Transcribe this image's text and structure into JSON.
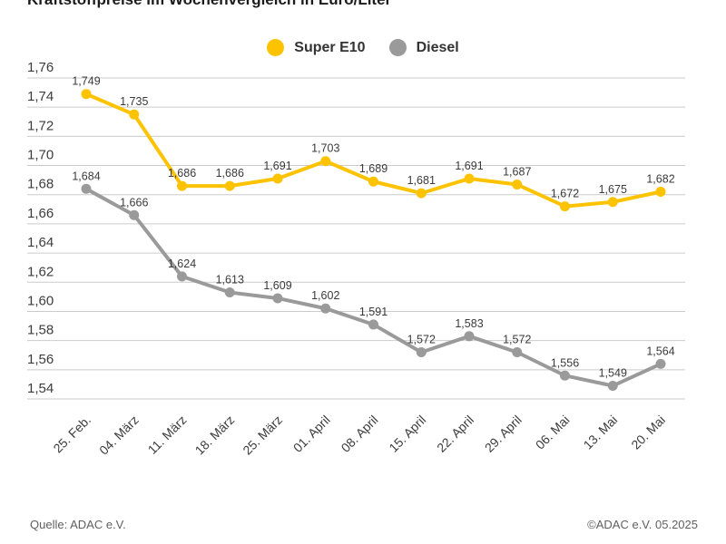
{
  "title": "Kraftstoffpreise im Wochenvergleich in Euro/Liter",
  "legend": {
    "items": [
      {
        "label": "Super E10",
        "color": "#FDC300"
      },
      {
        "label": "Diesel",
        "color": "#9A9A9A"
      }
    ]
  },
  "footer": {
    "source": "Quelle: ADAC e.V.",
    "copyright": "©ADAC e.V. 05.2025"
  },
  "colors": {
    "grid": "#CBCBCB",
    "axis_text": "#3C3C3C",
    "value_label": "#3A3A3A"
  },
  "chart_data": {
    "type": "line",
    "title": "Kraftstoffpreise im Wochenvergleich in Euro/Liter",
    "categories": [
      "25. Feb.",
      "04. März",
      "11. März",
      "18. März",
      "25. März",
      "01. April",
      "08. April",
      "15. April",
      "22. April",
      "29. April",
      "06. Mai",
      "13. Mai",
      "20. Mai"
    ],
    "series": [
      {
        "name": "Super E10",
        "color": "#FDC300",
        "values": [
          1.749,
          1.735,
          1.686,
          1.686,
          1.691,
          1.703,
          1.689,
          1.681,
          1.691,
          1.687,
          1.672,
          1.675,
          1.682
        ]
      },
      {
        "name": "Diesel",
        "color": "#9A9A9A",
        "values": [
          1.684,
          1.666,
          1.624,
          1.613,
          1.609,
          1.602,
          1.591,
          1.572,
          1.583,
          1.572,
          1.556,
          1.549,
          1.564
        ]
      }
    ],
    "xlabel": "",
    "ylabel": "",
    "ylim": [
      1.54,
      1.76
    ],
    "ytick_step": 0.02,
    "decimal_separator": ",",
    "value_labels": true,
    "grid": true,
    "legend_position": "top"
  }
}
